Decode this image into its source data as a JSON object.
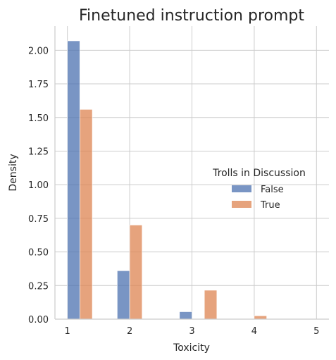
{
  "chart_data": {
    "type": "bar",
    "title": "Finetuned instruction prompt",
    "xlabel": "Toxicity",
    "ylabel": "Density",
    "xlim": [
      0.8,
      5.2
    ],
    "ylim": [
      0,
      2.18
    ],
    "xticks": [
      1,
      2,
      3,
      4,
      5
    ],
    "xtick_labels": [
      "1",
      "2",
      "3",
      "4",
      "5"
    ],
    "yticks": [
      0,
      0.25,
      0.5,
      0.75,
      1.0,
      1.25,
      1.5,
      1.75,
      2.0
    ],
    "ytick_labels": [
      "0.00",
      "0.25",
      "0.50",
      "0.75",
      "1.00",
      "1.25",
      "1.50",
      "1.75",
      "2.00"
    ],
    "grid": true,
    "legend": {
      "title": "Trolls in Discussion",
      "placement": "center-right"
    },
    "bin_width": 0.2,
    "series": [
      {
        "name": "False",
        "color": "#4c72b0",
        "bin_starts": [
          1.0,
          1.8,
          2.8,
          3.8
        ],
        "values": [
          2.07,
          0.36,
          0.055,
          0.0
        ]
      },
      {
        "name": "True",
        "color": "#dd8452",
        "bin_starts": [
          1.2,
          2.0,
          3.2,
          4.0
        ],
        "values": [
          1.56,
          0.7,
          0.215,
          0.025
        ]
      }
    ]
  }
}
